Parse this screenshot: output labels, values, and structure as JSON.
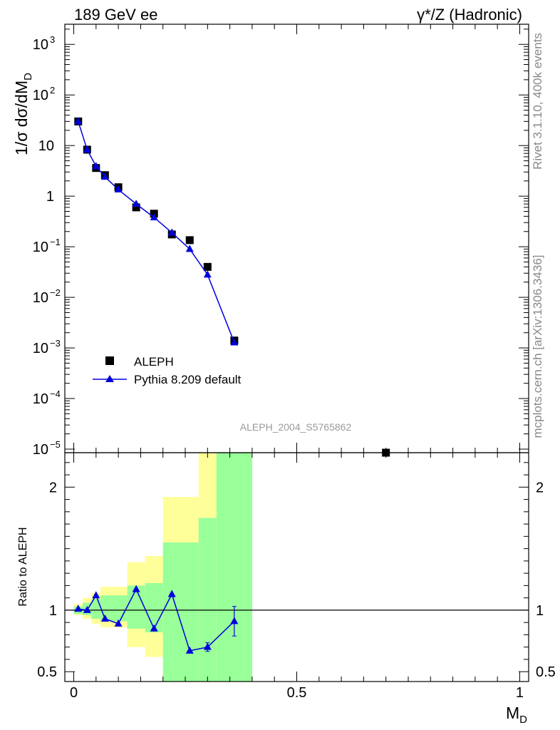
{
  "chart_data": [
    {
      "type": "scatter",
      "panel": "main",
      "title_left": "189 GeV ee",
      "title_right": "γ*/Z (Hadronic)",
      "ylabel": "1/σ dσ/dM_D",
      "ylabel_main": "1/σ  dσ/dM",
      "ylabel_sub": "D",
      "yscale": "log",
      "ylim": [
        8.5e-06,
        2500
      ],
      "xlim": [
        -0.02,
        1.02
      ],
      "y_ticks": [
        {
          "value": 1000,
          "label": "10",
          "exp": "3"
        },
        {
          "value": 100,
          "label": "10",
          "exp": "2"
        },
        {
          "value": 10,
          "label": "10",
          "exp": ""
        },
        {
          "value": 1,
          "label": "1",
          "exp": ""
        },
        {
          "value": 0.1,
          "label": "10",
          "exp": "−1"
        },
        {
          "value": 0.01,
          "label": "10",
          "exp": "−2"
        },
        {
          "value": 0.001,
          "label": "10",
          "exp": "−3"
        },
        {
          "value": 0.0001,
          "label": "10",
          "exp": "−4"
        },
        {
          "value": 1e-05,
          "label": "10",
          "exp": "−5"
        }
      ],
      "legend_location": "lower-left",
      "annotation": "ALEPH_2004_S5765862",
      "series": [
        {
          "name": "ALEPH",
          "marker": "square",
          "color": "#000000",
          "x": [
            0.01,
            0.03,
            0.05,
            0.07,
            0.1,
            0.14,
            0.18,
            0.22,
            0.26,
            0.3,
            0.36,
            0.7
          ],
          "y": [
            30,
            8.3,
            3.6,
            2.6,
            1.5,
            0.6,
            0.45,
            0.175,
            0.135,
            0.04,
            0.0014,
            8.5e-06
          ]
        },
        {
          "name": "Pythia 8.209 default",
          "marker": "triangle",
          "color": "#0000dd",
          "x": [
            0.01,
            0.03,
            0.05,
            0.07,
            0.1,
            0.14,
            0.18,
            0.22,
            0.26,
            0.3,
            0.36
          ],
          "y": [
            30,
            8.3,
            3.9,
            2.4,
            1.35,
            0.7,
            0.38,
            0.19,
            0.09,
            0.028,
            0.00128
          ]
        }
      ]
    },
    {
      "type": "line",
      "panel": "ratio",
      "ylabel": "Ratio to ALEPH",
      "xlabel": "M_D",
      "xlabel_main": "M",
      "xlabel_sub": "D",
      "ylim": [
        0.42,
        2.28
      ],
      "xlim": [
        -0.02,
        1.02
      ],
      "y_ticks": [
        {
          "value": 0.5,
          "label": "0.5"
        },
        {
          "value": 1,
          "label": "1"
        },
        {
          "value": 2,
          "label": "2"
        }
      ],
      "x_ticks": [
        {
          "value": 0,
          "label": "0"
        },
        {
          "value": 0.5,
          "label": "0.5"
        },
        {
          "value": 1,
          "label": "1"
        }
      ],
      "bands": [
        {
          "lo": 0.0,
          "hi": 0.02,
          "g": [
            0.97,
            1.03
          ],
          "y": [
            0.96,
            1.05
          ]
        },
        {
          "lo": 0.02,
          "hi": 0.04,
          "g": [
            0.96,
            1.06
          ],
          "y": [
            0.93,
            1.1
          ]
        },
        {
          "lo": 0.04,
          "hi": 0.06,
          "g": [
            0.93,
            1.09
          ],
          "y": [
            0.89,
            1.14
          ]
        },
        {
          "lo": 0.06,
          "hi": 0.08,
          "g": [
            0.91,
            1.12
          ],
          "y": [
            0.86,
            1.19
          ]
        },
        {
          "lo": 0.08,
          "hi": 0.12,
          "g": [
            0.91,
            1.12
          ],
          "y": [
            0.86,
            1.19
          ]
        },
        {
          "lo": 0.12,
          "hi": 0.16,
          "g": [
            0.85,
            1.2
          ],
          "y": [
            0.7,
            1.39
          ]
        },
        {
          "lo": 0.16,
          "hi": 0.2,
          "g": [
            0.82,
            1.22
          ],
          "y": [
            0.62,
            1.44
          ]
        },
        {
          "lo": 0.2,
          "hi": 0.28,
          "g": [
            0.42,
            1.55
          ],
          "y": [
            0.42,
            1.92
          ]
        },
        {
          "lo": 0.28,
          "hi": 0.32,
          "g": [
            0.42,
            1.75
          ],
          "y": [
            0.42,
            2.28
          ]
        },
        {
          "lo": 0.32,
          "hi": 0.4,
          "g": [
            0.42,
            2.28
          ],
          "y": [
            0.42,
            2.28
          ]
        }
      ],
      "reference_line": 1,
      "series": [
        {
          "name": "Pythia 8.209 default / ALEPH",
          "color": "#0000dd",
          "x": [
            0.01,
            0.03,
            0.05,
            0.07,
            0.1,
            0.14,
            0.18,
            0.22,
            0.26,
            0.3,
            0.36
          ],
          "y": [
            1.01,
            1.0,
            1.12,
            0.93,
            0.89,
            1.17,
            0.85,
            1.13,
            0.67,
            0.7,
            0.91
          ],
          "err": [
            0,
            0,
            0,
            0,
            0,
            0,
            0,
            0,
            0,
            0.035,
            0.12
          ]
        }
      ]
    }
  ],
  "side_text": {
    "rivet": "Rivet 3.1.10,  400k events",
    "mcplots": "mcplots.cern.ch [arXiv:1306.3436]"
  },
  "colors": {
    "band_green": "#99ff99",
    "band_yellow": "#ffff99",
    "data": "#000000",
    "mc": "#0000dd",
    "side": "#888888",
    "annotation": "#9a9a9a"
  }
}
